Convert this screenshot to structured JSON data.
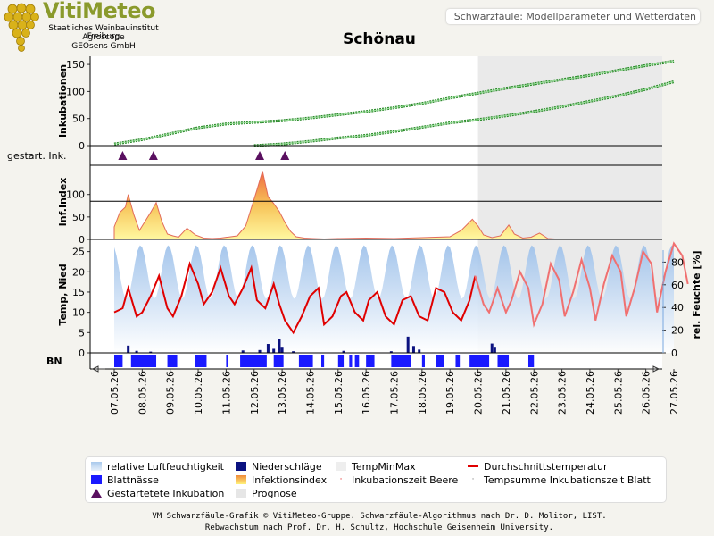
{
  "header": {
    "brand": "VitiMeteo",
    "brand_lines": [
      "Staatliches Weinbauinstitut Freiburg",
      "Agroscope",
      "GEOsens GmbH"
    ],
    "subtitle": "Schwarzfäule: Modellparameter und Wetterdaten",
    "title": "Schönau"
  },
  "chart_data": {
    "type": "line",
    "x_dates": [
      "07.05.26",
      "08.05.26",
      "09.05.26",
      "10.05.26",
      "11.05.26",
      "12.05.26",
      "13.05.26",
      "14.05.26",
      "15.05.26",
      "16.05.26",
      "17.05.26",
      "18.05.26",
      "19.05.26",
      "20.05.26",
      "21.05.26",
      "22.05.26",
      "23.05.26",
      "24.05.26",
      "25.05.26",
      "26.05.26",
      "27.05.26"
    ],
    "prognose_start": "20.05.26",
    "panels": {
      "inkubationen": {
        "ylabel": "Inkubationen",
        "yticks": [
          0,
          50,
          100,
          150
        ],
        "ylim": [
          0,
          165
        ],
        "series": [
          {
            "x": [
              0,
              1,
              2,
              3,
              4,
              5,
              6,
              7,
              8,
              9,
              10,
              11,
              12,
              13,
              14,
              15,
              16,
              17,
              18,
              19,
              20
            ],
            "values": [
              3,
              11,
              22,
              33,
              40,
              43,
              46,
              51,
              57,
              63,
              70,
              78,
              88,
              97,
              106,
              114,
              122,
              130,
              139,
              148,
              156
            ]
          },
          {
            "x": [
              5,
              6,
              7,
              8,
              9,
              10,
              11,
              12,
              13,
              14,
              15,
              16,
              17,
              18,
              19,
              20
            ],
            "values": [
              0,
              3,
              8,
              14,
              19,
              26,
              34,
              42,
              48,
              55,
              63,
              72,
              82,
              92,
              104,
              118
            ]
          }
        ]
      },
      "gestartete_inkubation": {
        "ylabel": "gestart. Ink.",
        "x": [
          0.3,
          1.4,
          5.2,
          6.1
        ]
      },
      "infektionsindex": {
        "ylabel": "Inf.Index",
        "yticks": [
          0,
          50,
          100
        ],
        "ylim": [
          0,
          165
        ],
        "hline": 85,
        "points": [
          [
            0,
            28
          ],
          [
            0.2,
            60
          ],
          [
            0.4,
            72
          ],
          [
            0.5,
            100
          ],
          [
            0.7,
            55
          ],
          [
            0.9,
            20
          ],
          [
            1.1,
            40
          ],
          [
            1.3,
            60
          ],
          [
            1.5,
            82
          ],
          [
            1.7,
            40
          ],
          [
            1.9,
            12
          ],
          [
            2.1,
            8
          ],
          [
            2.3,
            5
          ],
          [
            2.6,
            25
          ],
          [
            2.9,
            10
          ],
          [
            3.2,
            3
          ],
          [
            3.5,
            2
          ],
          [
            3.8,
            3
          ],
          [
            4.4,
            8
          ],
          [
            4.7,
            30
          ],
          [
            4.9,
            70
          ],
          [
            5.1,
            110
          ],
          [
            5.3,
            152
          ],
          [
            5.5,
            95
          ],
          [
            5.7,
            80
          ],
          [
            5.9,
            62
          ],
          [
            6.1,
            38
          ],
          [
            6.3,
            18
          ],
          [
            6.5,
            6
          ],
          [
            6.8,
            3
          ],
          [
            7.1,
            2
          ],
          [
            7.5,
            1
          ],
          [
            8,
            2
          ],
          [
            9,
            3
          ],
          [
            10,
            2
          ],
          [
            11,
            4
          ],
          [
            12,
            6
          ],
          [
            12.4,
            20
          ],
          [
            12.8,
            45
          ],
          [
            13.0,
            30
          ],
          [
            13.2,
            10
          ],
          [
            13.5,
            4
          ],
          [
            13.8,
            8
          ],
          [
            14.1,
            32
          ],
          [
            14.3,
            12
          ],
          [
            14.6,
            3
          ],
          [
            14.9,
            5
          ],
          [
            15.2,
            14
          ],
          [
            15.5,
            2
          ],
          [
            16,
            0
          ]
        ]
      },
      "temperatur": {
        "ylabel": "Temp, Nied",
        "yticks": [
          0,
          5,
          10,
          15,
          20,
          25
        ],
        "ylim": [
          0,
          28
        ],
        "y2label": "rel. Feuchte [%]",
        "y2ticks": [
          0,
          20,
          40,
          60,
          80
        ],
        "y2lim": [
          0,
          100
        ],
        "durchschnittstemperatur": [
          [
            0,
            10
          ],
          [
            0.3,
            11
          ],
          [
            0.5,
            16
          ],
          [
            0.8,
            9
          ],
          [
            1.0,
            10
          ],
          [
            1.3,
            14
          ],
          [
            1.6,
            19
          ],
          [
            1.9,
            11
          ],
          [
            2.1,
            9
          ],
          [
            2.4,
            14
          ],
          [
            2.7,
            22
          ],
          [
            3.0,
            17
          ],
          [
            3.2,
            12
          ],
          [
            3.5,
            15
          ],
          [
            3.8,
            21
          ],
          [
            4.1,
            14
          ],
          [
            4.3,
            12
          ],
          [
            4.6,
            16
          ],
          [
            4.9,
            21
          ],
          [
            5.1,
            13
          ],
          [
            5.4,
            11
          ],
          [
            5.7,
            17
          ],
          [
            5.9,
            12
          ],
          [
            6.1,
            8
          ],
          [
            6.4,
            5
          ],
          [
            6.7,
            9
          ],
          [
            7.0,
            14
          ],
          [
            7.3,
            16
          ],
          [
            7.5,
            7
          ],
          [
            7.8,
            9
          ],
          [
            8.1,
            14
          ],
          [
            8.3,
            15
          ],
          [
            8.6,
            10
          ],
          [
            8.9,
            8
          ],
          [
            9.1,
            13
          ],
          [
            9.4,
            15
          ],
          [
            9.7,
            9
          ],
          [
            10.0,
            7
          ],
          [
            10.3,
            13
          ],
          [
            10.6,
            14
          ],
          [
            10.9,
            9
          ],
          [
            11.2,
            8
          ],
          [
            11.5,
            16
          ],
          [
            11.8,
            15
          ],
          [
            12.1,
            10
          ],
          [
            12.4,
            8
          ],
          [
            12.7,
            13
          ],
          [
            12.9,
            19
          ],
          [
            13.2,
            12
          ],
          [
            13.4,
            10
          ],
          [
            13.7,
            16
          ],
          [
            14.0,
            10
          ],
          [
            14.2,
            13
          ],
          [
            14.5,
            20
          ],
          [
            14.8,
            16
          ],
          [
            15.0,
            7
          ],
          [
            15.3,
            12
          ],
          [
            15.6,
            22
          ],
          [
            15.9,
            18
          ],
          [
            16.1,
            9
          ],
          [
            16.4,
            15
          ],
          [
            16.7,
            23
          ],
          [
            17.0,
            16
          ],
          [
            17.2,
            8
          ],
          [
            17.5,
            17
          ],
          [
            17.8,
            24
          ],
          [
            18.1,
            20
          ],
          [
            18.3,
            9
          ],
          [
            18.6,
            16
          ],
          [
            18.9,
            25
          ],
          [
            19.2,
            22
          ],
          [
            19.4,
            10
          ],
          [
            19.7,
            20
          ],
          [
            20.0,
            27
          ],
          [
            20.3,
            24
          ],
          [
            20.5,
            17
          ]
        ],
        "niederschlaege": [
          [
            0.5,
            1.8
          ],
          [
            0.8,
            0.5
          ],
          [
            1.3,
            0.3
          ],
          [
            4.6,
            0.6
          ],
          [
            5.2,
            0.7
          ],
          [
            5.5,
            2.2
          ],
          [
            5.7,
            1.0
          ],
          [
            5.9,
            3.5
          ],
          [
            6.0,
            1.5
          ],
          [
            6.4,
            0.4
          ],
          [
            8.2,
            0.5
          ],
          [
            9.9,
            0.4
          ],
          [
            10.5,
            4.0
          ],
          [
            10.7,
            1.7
          ],
          [
            10.9,
            0.8
          ],
          [
            13.5,
            2.3
          ],
          [
            13.6,
            1.5
          ]
        ],
        "rel_feuchte_range": [
          22,
          95
        ]
      },
      "blattnaesse": {
        "ylabel": "BN",
        "intervals": [
          [
            0.0,
            0.3
          ],
          [
            0.6,
            1.5
          ],
          [
            1.9,
            2.25
          ],
          [
            2.9,
            3.3
          ],
          [
            4.0,
            4.05
          ],
          [
            4.5,
            5.45
          ],
          [
            5.7,
            6.05
          ],
          [
            6.6,
            7.1
          ],
          [
            7.4,
            7.5
          ],
          [
            8.0,
            8.2
          ],
          [
            8.4,
            8.5
          ],
          [
            8.6,
            8.75
          ],
          [
            9.0,
            9.3
          ],
          [
            9.9,
            10.6
          ],
          [
            11.0,
            11.1
          ],
          [
            11.5,
            11.8
          ],
          [
            12.2,
            12.35
          ],
          [
            12.7,
            13.4
          ],
          [
            13.7,
            14.1
          ],
          [
            14.8,
            15.0
          ]
        ]
      }
    }
  },
  "legend": {
    "items": [
      {
        "label": "relative Luftfeuchtigkeit",
        "swatch": "#a9c9ec"
      },
      {
        "label": "Niederschläge",
        "swatch": "#0b1280"
      },
      {
        "label": "TempMinMax",
        "swatch": "#eeeeee"
      },
      {
        "label": "Durchschnittstemperatur",
        "swatch": "#e00000"
      },
      {
        "label": "Blattnässe",
        "swatch": "#1a1aff"
      },
      {
        "label": "Infektionsindex",
        "swatch": "#f5b060"
      },
      {
        "label": "Inkubationszeit Beere",
        "swatch": "#e00000"
      },
      {
        "label": "Tempsumme Inkubationszeit Blatt",
        "swatch": "#666666"
      },
      {
        "label": "Gestartetete Inkubation",
        "swatch": "#5a1060"
      },
      {
        "label": "Prognose",
        "swatch": "#e6e6e6"
      }
    ]
  },
  "footer": {
    "line1": "VM Schwarzfäule-Grafik © VitiMeteo-Gruppe. Schwarzfäule-Algorithmus nach Dr. D. Molitor, LIST.",
    "line2": "Rebwachstum nach Prof. Dr. H. Schultz, Hochschule Geisenheim University."
  }
}
